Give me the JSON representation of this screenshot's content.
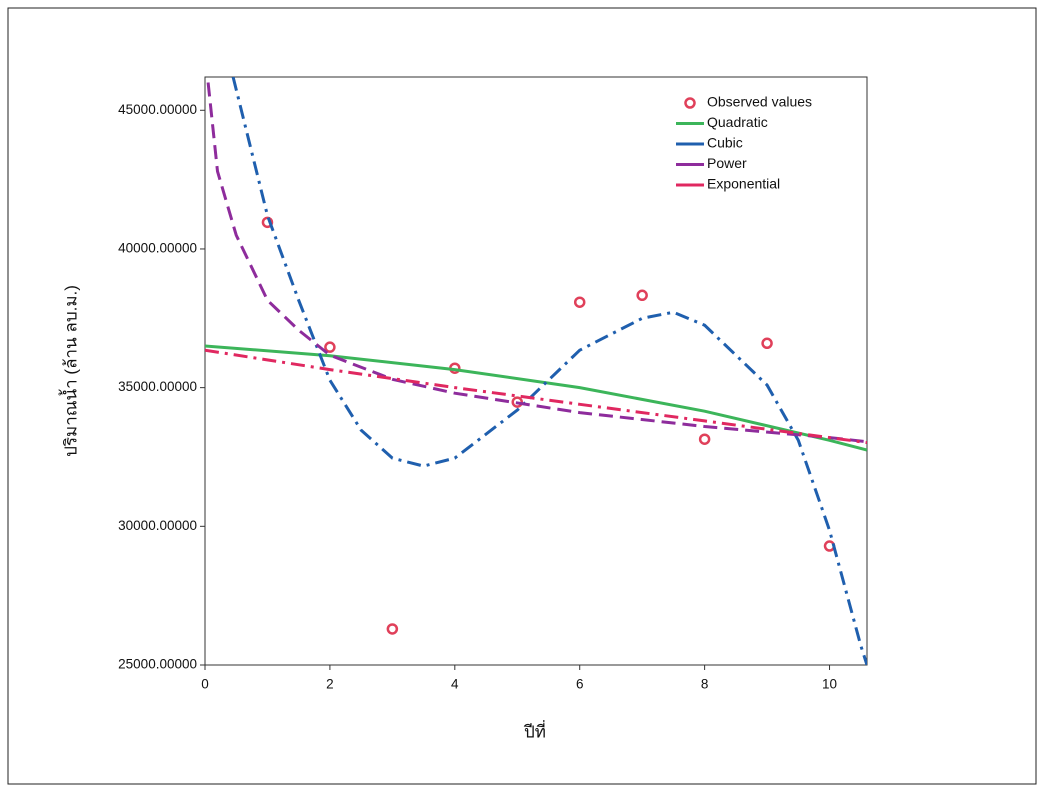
{
  "chart_data": {
    "type": "line",
    "x_label": "ปีที่",
    "y_label": "ปริมาณน้ำ (ล้าน ลบ.ม.)",
    "xlim": [
      0,
      10.6
    ],
    "ylim": [
      25000,
      46200
    ],
    "xticks": [
      0,
      2,
      4,
      6,
      8,
      10
    ],
    "yticks": [
      {
        "value": 25000,
        "label": "25000.00000"
      },
      {
        "value": 30000,
        "label": "30000.00000"
      },
      {
        "value": 35000,
        "label": "35000.00000"
      },
      {
        "value": 40000,
        "label": "40000.00000"
      },
      {
        "value": 45000,
        "label": "45000.00000"
      }
    ],
    "legend": "top-right",
    "series": [
      {
        "name": "Observed values",
        "type": "scatter",
        "color": "#e0405a",
        "x": [
          1,
          2,
          3,
          4,
          5,
          6,
          7,
          8,
          9,
          10
        ],
        "values": [
          40960,
          36460,
          26300,
          35700,
          34480,
          38080,
          38330,
          33140,
          36600,
          29290
        ]
      },
      {
        "name": "Quadratic",
        "type": "line",
        "dash": "solid",
        "color": "#3cb55a",
        "x": [
          0,
          2,
          4,
          6,
          8,
          10,
          10.6
        ],
        "values": [
          36500,
          36150,
          35650,
          35000,
          34150,
          33100,
          32750
        ]
      },
      {
        "name": "Cubic",
        "type": "line",
        "dash": "dashdot",
        "color": "#1f5fae",
        "x": [
          0.45,
          1,
          1.5,
          2,
          2.5,
          3,
          3.5,
          4,
          5,
          6,
          7,
          7.5,
          8,
          9,
          9.5,
          10,
          10.5,
          10.6
        ],
        "values": [
          46200,
          41200,
          38150,
          35270,
          33470,
          32460,
          32170,
          32460,
          34190,
          36350,
          37500,
          37720,
          37250,
          35090,
          33100,
          29860,
          25700,
          25000
        ]
      },
      {
        "name": "Power",
        "type": "line",
        "dash": "dashed",
        "color": "#8e2c9c",
        "x": [
          0.05,
          0.2,
          0.5,
          1,
          1.5,
          2,
          3,
          4,
          6,
          8,
          10,
          10.6
        ],
        "values": [
          46000,
          42800,
          40500,
          38150,
          37070,
          36170,
          35300,
          34800,
          34100,
          33600,
          33200,
          33050
        ]
      },
      {
        "name": "Exponential",
        "type": "line",
        "dash": "dashdot",
        "color": "#e02860",
        "x": [
          0,
          2,
          4,
          6,
          8,
          10,
          10.6
        ],
        "values": [
          36350,
          35650,
          35000,
          34400,
          33800,
          33200,
          33020
        ]
      }
    ]
  }
}
